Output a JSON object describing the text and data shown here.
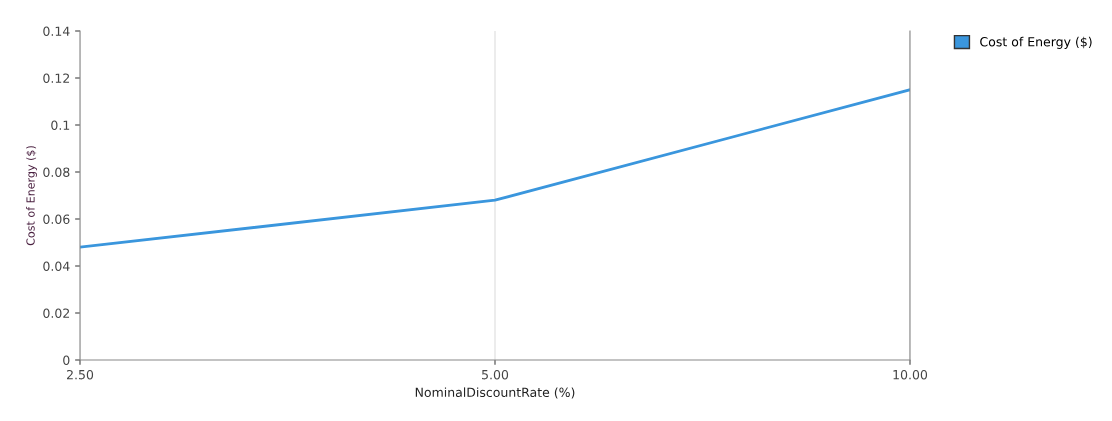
{
  "chart_data": {
    "type": "line",
    "xlabel": "NominalDiscountRate (%)",
    "ylabel": "Cost of Energy ($)",
    "categories": [
      "2.50",
      "5.00",
      "10.00"
    ],
    "series": [
      {
        "name": "Cost of Energy ($)",
        "color": "#3a96dd",
        "values": [
          0.048,
          0.068,
          0.115
        ]
      }
    ],
    "ylim": [
      0,
      0.14
    ],
    "yticks": [
      {
        "value": 0,
        "label": "0"
      },
      {
        "value": 0.02,
        "label": "0.02"
      },
      {
        "value": 0.04,
        "label": "0.04"
      },
      {
        "value": 0.06,
        "label": "0.06"
      },
      {
        "value": 0.08,
        "label": "0.08"
      },
      {
        "value": 0.1,
        "label": "0.1"
      },
      {
        "value": 0.12,
        "label": "0.12"
      },
      {
        "value": 0.14,
        "label": "0.14"
      }
    ],
    "grid": "x",
    "legend": "top right"
  }
}
